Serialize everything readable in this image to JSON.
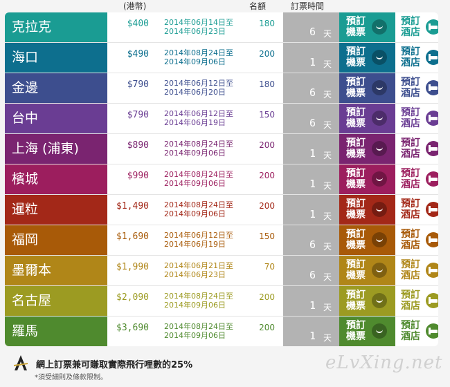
{
  "header": {
    "currency": "(港幣)",
    "quota": "名額",
    "booking_time": "訂票時間"
  },
  "labels": {
    "book_ticket": "預訂機票",
    "book_hotel": "預訂酒店",
    "days_unit": "天"
  },
  "rows": [
    {
      "city": "克拉克",
      "price": "$400",
      "date_from": "2014年06月14日至",
      "date_to": "2014年06月23日",
      "quota": "180",
      "days": "6",
      "color": "#1a9c93"
    },
    {
      "city": "海口",
      "price": "$490",
      "date_from": "2014年08月24日至",
      "date_to": "2014年09月06日",
      "quota": "200",
      "days": "1",
      "color": "#0d6f8e"
    },
    {
      "city": "金邊",
      "price": "$790",
      "date_from": "2014年06月12日至",
      "date_to": "2014年06月20日",
      "quota": "180",
      "days": "6",
      "color": "#3d4e8e"
    },
    {
      "city": "台中",
      "price": "$790",
      "date_from": "2014年06月12日至",
      "date_to": "2014年06月19日",
      "quota": "150",
      "days": "6",
      "color": "#6a3d93"
    },
    {
      "city": "上海 (浦東)",
      "price": "$890",
      "date_from": "2014年08月24日至",
      "date_to": "2014年09月06日",
      "quota": "200",
      "days": "1",
      "color": "#7a2470"
    },
    {
      "city": "檳城",
      "price": "$990",
      "date_from": "2014年08月24日至",
      "date_to": "2014年09月06日",
      "quota": "200",
      "days": "1",
      "color": "#9c1e5e"
    },
    {
      "city": "暹粒",
      "price": "$1,490",
      "date_from": "2014年08月24日至",
      "date_to": "2014年09月06日",
      "quota": "200",
      "days": "1",
      "color": "#a32818"
    },
    {
      "city": "福岡",
      "price": "$1,690",
      "date_from": "2014年06月12日至",
      "date_to": "2014年06月19日",
      "quota": "150",
      "days": "6",
      "color": "#a85a08"
    },
    {
      "city": "墨爾本",
      "price": "$1,990",
      "date_from": "2014年06月21日至",
      "date_to": "2014年06月23日",
      "quota": "70",
      "days": "6",
      "color": "#b08618"
    },
    {
      "city": "名古屋",
      "price": "$2,090",
      "date_from": "2014年08月24日至",
      "date_to": "2014年09月06日",
      "quota": "200",
      "days": "1",
      "color": "#9c9b22"
    },
    {
      "city": "羅馬",
      "price": "$3,690",
      "date_from": "2014年08月24日至",
      "date_to": "2014年09月06日",
      "quota": "200",
      "days": "1",
      "color": "#4f8a2e"
    }
  ],
  "footer": {
    "main": "網上訂票兼可賺取實際飛行哩數的25%",
    "note": "*須受細則及條款限制。",
    "watermark": "eLvXing.net",
    "logo": "airline-logo-icon"
  }
}
